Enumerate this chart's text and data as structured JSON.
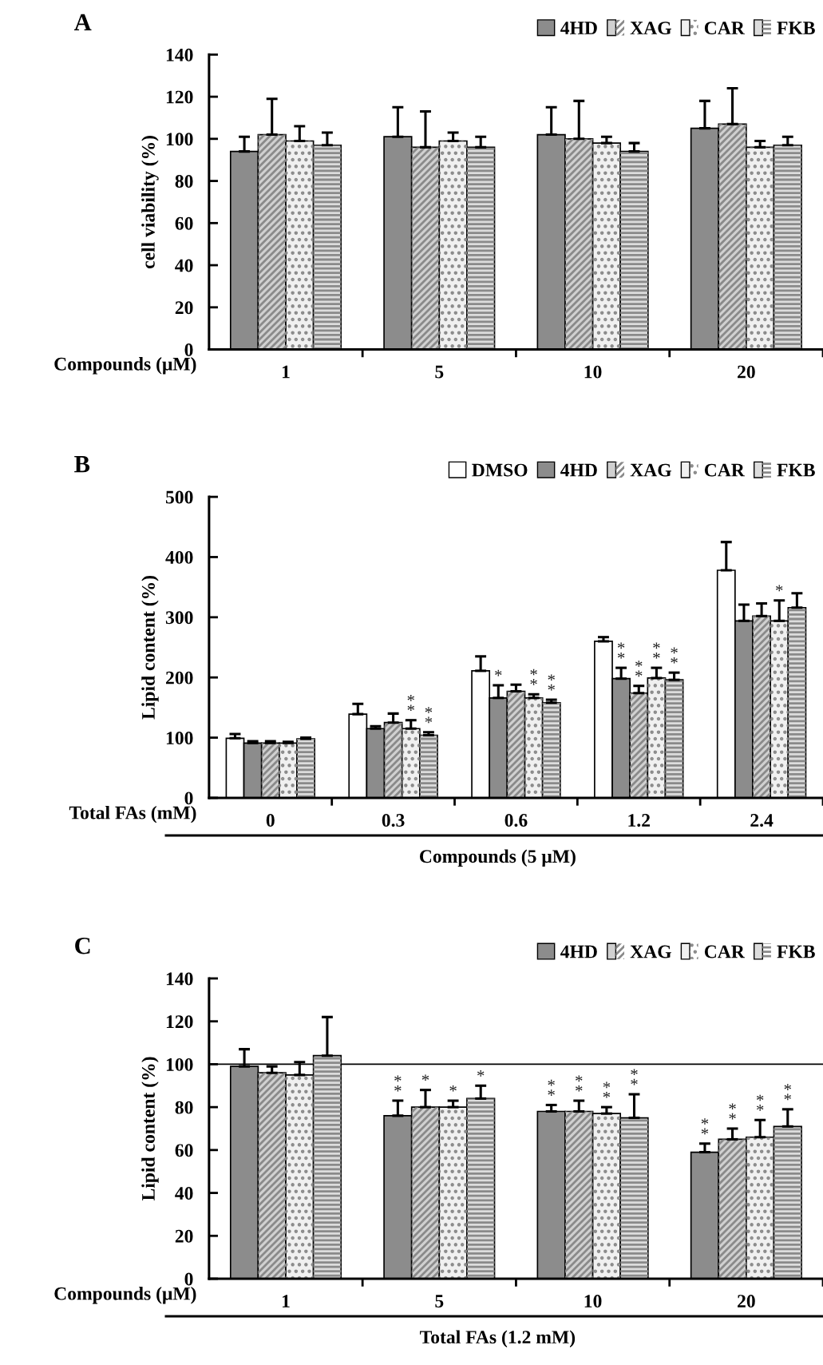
{
  "chart_data": [
    {
      "type": "bar",
      "title": "A",
      "ylabel": "cell viability (%)",
      "xlabel": "Compounds (μM)",
      "categories": [
        "1",
        "5",
        "10",
        "20"
      ],
      "ylim": [
        0,
        140
      ],
      "yticks": [
        0,
        20,
        40,
        60,
        80,
        100,
        120,
        140
      ],
      "legend": "top right",
      "series": [
        {
          "name": "4HD",
          "color": "#8c8c8c",
          "values": [
            94,
            101,
            102,
            105
          ],
          "errors": [
            [
              94,
              101
            ],
            [
              101,
              115
            ],
            [
              102,
              115
            ],
            [
              105,
              118
            ]
          ]
        },
        {
          "name": "XAG",
          "color": "#d0d0d0",
          "values": [
            102,
            96,
            100,
            107
          ],
          "errors": [
            [
              102,
              119
            ],
            [
              96,
              113
            ],
            [
              100,
              118
            ],
            [
              107,
              124
            ]
          ]
        },
        {
          "name": "CAR",
          "color": "#f0f0f0",
          "values": [
            99,
            99,
            98,
            96
          ],
          "errors": [
            [
              99,
              106
            ],
            [
              99,
              103
            ],
            [
              98,
              101
            ],
            [
              96,
              99
            ]
          ]
        },
        {
          "name": "FKB",
          "color": "#dcdcdc",
          "values": [
            97,
            96,
            94,
            97
          ],
          "errors": [
            [
              97,
              103
            ],
            [
              96,
              101
            ],
            [
              94,
              98
            ],
            [
              97,
              101
            ]
          ]
        }
      ]
    },
    {
      "type": "bar",
      "title": "B",
      "ylabel": "Lipid content (%)",
      "xlabel": "Total FAs (mM)",
      "categories": [
        "0",
        "0.3",
        "0.6",
        "1.2",
        "2.4"
      ],
      "ylim": [
        0,
        500
      ],
      "yticks": [
        0,
        100,
        200,
        300,
        400,
        500
      ],
      "legend": "top right",
      "annotations": [
        "Compounds (5 μM)"
      ],
      "series": [
        {
          "name": "DMSO",
          "color": "#ffffff",
          "values": [
            99,
            139,
            211,
            260,
            378
          ],
          "errors": [
            [
              99,
              106
            ],
            [
              139,
              156
            ],
            [
              211,
              235
            ],
            [
              260,
              267
            ],
            [
              378,
              425
            ]
          ]
        },
        {
          "name": "4HD",
          "color": "#8c8c8c",
          "values": [
            91,
            115,
            166,
            198,
            294
          ],
          "errors": [
            [
              91,
              94
            ],
            [
              115,
              119
            ],
            [
              166,
              187
            ],
            [
              198,
              216
            ],
            [
              294,
              321
            ]
          ],
          "value_labels": [
            null,
            null,
            "*",
            "**",
            null
          ]
        },
        {
          "name": "XAG",
          "color": "#d0d0d0",
          "values": [
            91,
            125,
            177,
            174,
            302
          ],
          "errors": [
            [
              91,
              94
            ],
            [
              125,
              140
            ],
            [
              177,
              188
            ],
            [
              174,
              186
            ],
            [
              302,
              323
            ]
          ],
          "value_labels": [
            null,
            null,
            null,
            "**",
            null
          ]
        },
        {
          "name": "CAR",
          "color": "#f0f0f0",
          "values": [
            91,
            115,
            166,
            199,
            294
          ],
          "errors": [
            [
              91,
              93
            ],
            [
              115,
              129
            ],
            [
              166,
              172
            ],
            [
              199,
              216
            ],
            [
              294,
              328
            ]
          ],
          "value_labels": [
            null,
            "**",
            "**",
            "**",
            "*"
          ]
        },
        {
          "name": "FKB",
          "color": "#dcdcdc",
          "values": [
            98,
            104,
            158,
            196,
            316
          ],
          "errors": [
            [
              98,
              100
            ],
            [
              104,
              109
            ],
            [
              158,
              163
            ],
            [
              196,
              208
            ],
            [
              316,
              340
            ]
          ],
          "value_labels": [
            null,
            "**",
            "**",
            "**",
            null
          ]
        }
      ]
    },
    {
      "type": "bar",
      "title": "C",
      "ylabel": "Lipid content (%)",
      "xlabel": "Compounds (μM)",
      "categories": [
        "1",
        "5",
        "10",
        "20"
      ],
      "ylim": [
        0,
        140
      ],
      "yticks": [
        0,
        20,
        40,
        60,
        80,
        100,
        120,
        140
      ],
      "legend": "top right",
      "annotations": [
        "Total FAs (1.2 mM)"
      ],
      "ref_lines": [
        {
          "axis": "y",
          "value": 100,
          "color": "#000000"
        }
      ],
      "series": [
        {
          "name": "4HD",
          "color": "#8c8c8c",
          "values": [
            99,
            76,
            78,
            59
          ],
          "errors": [
            [
              99,
              107
            ],
            [
              76,
              83
            ],
            [
              78,
              81
            ],
            [
              59,
              63
            ]
          ],
          "value_labels": [
            null,
            "**",
            "**",
            "**"
          ]
        },
        {
          "name": "XAG",
          "color": "#d0d0d0",
          "values": [
            96,
            80,
            78,
            65
          ],
          "errors": [
            [
              96,
              99
            ],
            [
              80,
              88
            ],
            [
              78,
              83
            ],
            [
              65,
              70
            ]
          ],
          "value_labels": [
            null,
            "*",
            "**",
            "**"
          ]
        },
        {
          "name": "CAR",
          "color": "#f0f0f0",
          "values": [
            95,
            80,
            77,
            66
          ],
          "errors": [
            [
              95,
              101
            ],
            [
              80,
              83
            ],
            [
              77,
              80
            ],
            [
              66,
              74
            ]
          ],
          "value_labels": [
            null,
            "*",
            "**",
            "**"
          ]
        },
        {
          "name": "FKB",
          "color": "#dcdcdc",
          "values": [
            104,
            84,
            75,
            71
          ],
          "errors": [
            [
              104,
              122
            ],
            [
              84,
              90
            ],
            [
              75,
              86
            ],
            [
              71,
              79
            ]
          ],
          "value_labels": [
            null,
            "*",
            "**",
            "**"
          ]
        }
      ]
    }
  ]
}
